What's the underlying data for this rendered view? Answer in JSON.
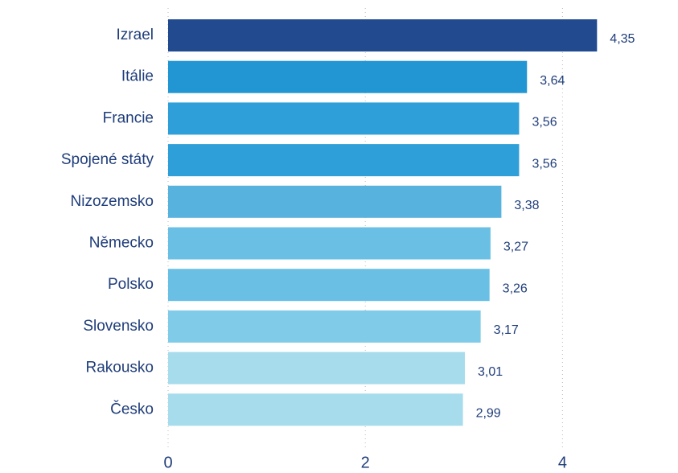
{
  "chart_data": {
    "type": "hbar",
    "categories": [
      "Izrael",
      "Itálie",
      "Francie",
      "Spojené státy",
      "Nizozemsko",
      "Německo",
      "Polsko",
      "Slovensko",
      "Rakousko",
      "Česko"
    ],
    "values": [
      4.35,
      3.64,
      3.56,
      3.56,
      3.38,
      3.27,
      3.26,
      3.17,
      3.01,
      2.99
    ],
    "value_labels": [
      "4,35",
      "3,64",
      "3,56",
      "3,56",
      "3,38",
      "3,27",
      "3,26",
      "3,17",
      "3,01",
      "2,99"
    ],
    "colors": [
      "#224a8f",
      "#2196d3",
      "#2e9fd8",
      "#2e9fd8",
      "#58b2de",
      "#6ac0e4",
      "#6ac0e4",
      "#80cbe8",
      "#a6dcec",
      "#a6dcec"
    ],
    "xlim": [
      0,
      4.5
    ],
    "xticks": [
      0,
      2,
      4
    ],
    "grid": true
  }
}
